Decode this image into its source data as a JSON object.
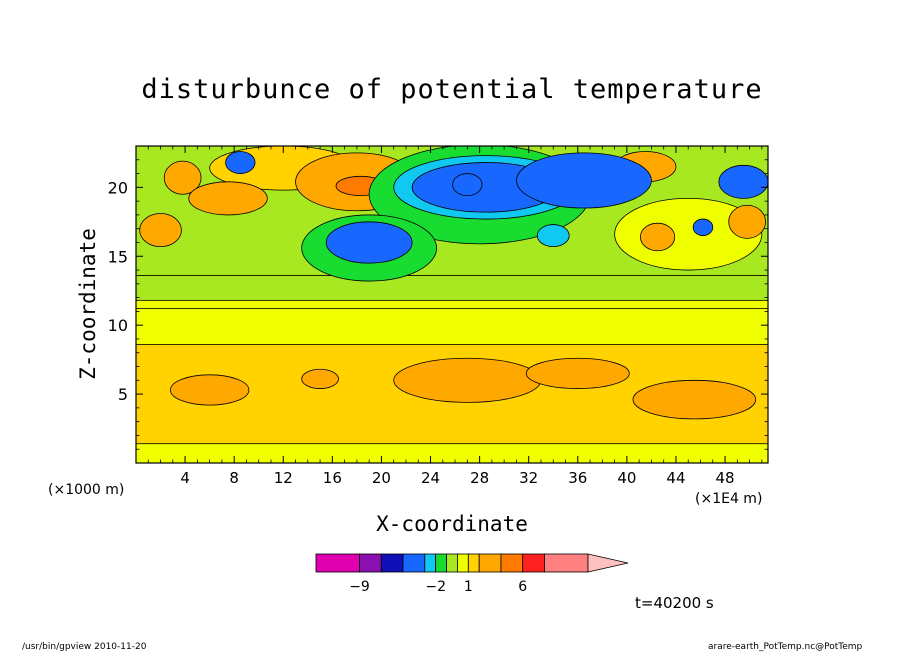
{
  "chart_data": {
    "type": "heatmap",
    "title": "disturbunce of potential temperature",
    "xlabel": "X-coordinate",
    "ylabel": "Z-coordinate",
    "x_unit": "(×1000 m)",
    "x_scale": "(×1E4 m)",
    "xlim": [
      0,
      51.5
    ],
    "ylim": [
      0,
      23
    ],
    "x_ticks": [
      4,
      8,
      12,
      16,
      20,
      24,
      28,
      32,
      36,
      40,
      44,
      48
    ],
    "y_ticks": [
      5,
      10,
      15,
      20
    ],
    "time_label": "t=40200 s",
    "colorbar": {
      "levels": [
        -13,
        -9,
        -7,
        -5,
        -3,
        -2,
        -1,
        0,
        1,
        2,
        4,
        6,
        8,
        12
      ],
      "colors": [
        "#e000b0",
        "#8a10b0",
        "#1010b8",
        "#1868ff",
        "#10c8f0",
        "#18dd30",
        "#a8e820",
        "#f0ff00",
        "#ffd200",
        "#ffa800",
        "#ff7a00",
        "#ff2020",
        "#ff8080",
        "#ffc0c0"
      ],
      "labels": [
        {
          "value": -9,
          "text": "−9"
        },
        {
          "value": -2,
          "text": "−2"
        },
        {
          "value": 1,
          "text": "1"
        },
        {
          "value": 6,
          "text": "6"
        }
      ]
    },
    "features": [
      {
        "kind": "band",
        "x0": 0,
        "x1": 51.5,
        "z0": 0,
        "z1": 11.2,
        "level": 0
      },
      {
        "kind": "band",
        "x0": 0,
        "x1": 51.5,
        "z0": 1.4,
        "z1": 8.6,
        "level": 1
      },
      {
        "kind": "band",
        "x0": 0,
        "x1": 51.5,
        "z0": 11.8,
        "z1": 13.6,
        "level": -1
      },
      {
        "kind": "band",
        "x0": 0,
        "x1": 51.5,
        "z0": 13.6,
        "z1": 23,
        "level": -1
      },
      {
        "kind": "blob",
        "x": 12,
        "z": 21.4,
        "rx": 6,
        "rz": 1.6,
        "level": 1
      },
      {
        "kind": "blob",
        "x": 45,
        "z": 16.6,
        "rx": 6,
        "rz": 2.6,
        "level": 0
      },
      {
        "kind": "blob",
        "x": 6,
        "z": 5.3,
        "rx": 3.2,
        "rz": 1.1,
        "level": 2
      },
      {
        "kind": "blob",
        "x": 15,
        "z": 6.1,
        "rx": 1.5,
        "rz": 0.7,
        "level": 2
      },
      {
        "kind": "blob",
        "x": 27,
        "z": 6,
        "rx": 6,
        "rz": 1.6,
        "level": 2
      },
      {
        "kind": "blob",
        "x": 36,
        "z": 6.5,
        "rx": 4.2,
        "rz": 1.1,
        "level": 2
      },
      {
        "kind": "blob",
        "x": 45.5,
        "z": 4.6,
        "rx": 5,
        "rz": 1.4,
        "level": 2
      },
      {
        "kind": "blob",
        "x": 2,
        "z": 16.9,
        "rx": 1.7,
        "rz": 1.2,
        "level": 2
      },
      {
        "kind": "blob",
        "x": 3.8,
        "z": 20.7,
        "rx": 1.5,
        "rz": 1.2,
        "level": 2
      },
      {
        "kind": "blob",
        "x": 7.5,
        "z": 19.2,
        "rx": 3.2,
        "rz": 1.2,
        "level": 3
      },
      {
        "kind": "blob",
        "x": 18,
        "z": 20.4,
        "rx": 5,
        "rz": 2.1,
        "level": 2
      },
      {
        "kind": "blob",
        "x": 18.3,
        "z": 20.1,
        "rx": 2,
        "rz": 0.7,
        "level": 4
      },
      {
        "kind": "blob",
        "x": 41.5,
        "z": 21.5,
        "rx": 2.5,
        "rz": 1.1,
        "level": 2
      },
      {
        "kind": "blob",
        "x": 42.5,
        "z": 16.4,
        "rx": 1.4,
        "rz": 1,
        "level": 2
      },
      {
        "kind": "blob",
        "x": 49.8,
        "z": 17.5,
        "rx": 1.5,
        "rz": 1.2,
        "level": 2
      },
      {
        "kind": "blob",
        "x": 28,
        "z": 19.5,
        "rx": 9,
        "rz": 3.6,
        "level": -2
      },
      {
        "kind": "blob",
        "x": 28.5,
        "z": 20,
        "rx": 7.5,
        "rz": 2.3,
        "level": -3
      },
      {
        "kind": "blob",
        "x": 28.5,
        "z": 20,
        "rx": 6,
        "rz": 1.8,
        "level": -4
      },
      {
        "kind": "blob",
        "x": 27,
        "z": 20.2,
        "rx": 1.2,
        "rz": 0.8,
        "level": -5
      },
      {
        "kind": "blob",
        "x": 35.8,
        "z": 21.6,
        "rx": 1,
        "rz": 0.6,
        "level": -5
      },
      {
        "kind": "blob",
        "x": 36.5,
        "z": 20.5,
        "rx": 5.5,
        "rz": 2,
        "level": -4
      },
      {
        "kind": "blob",
        "x": 19,
        "z": 15.6,
        "rx": 5.5,
        "rz": 2.4,
        "level": -2
      },
      {
        "kind": "blob",
        "x": 19,
        "z": 16,
        "rx": 3.5,
        "rz": 1.5,
        "level": -4
      },
      {
        "kind": "blob",
        "x": 8.5,
        "z": 21.8,
        "rx": 1.2,
        "rz": 0.8,
        "level": -4
      },
      {
        "kind": "blob",
        "x": 49.5,
        "z": 20.4,
        "rx": 2,
        "rz": 1.2,
        "level": -4
      },
      {
        "kind": "blob",
        "x": 46.2,
        "z": 17.1,
        "rx": 0.8,
        "rz": 0.6,
        "level": -4
      },
      {
        "kind": "blob",
        "x": 34,
        "z": 16.5,
        "rx": 1.3,
        "rz": 0.8,
        "level": -3
      }
    ]
  },
  "footer": {
    "left": "/usr/bin/gpview   2010-11-20",
    "right": "arare-earth_PotTemp.nc@PotTemp"
  }
}
